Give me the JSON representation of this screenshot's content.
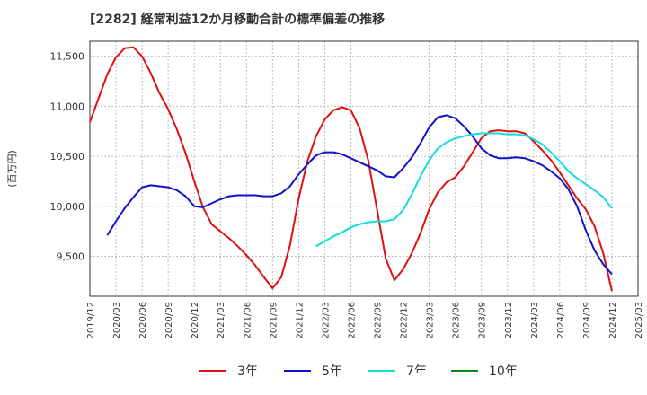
{
  "title": "[2282]  経常利益12か月移動合計の標準偏差の推移",
  "chart_data": {
    "type": "line",
    "title": "[2282]  経常利益12か月移動合計の標準偏差の推移",
    "ylabel": "(百万円)",
    "xlabel": "",
    "ylim": [
      9100,
      11650
    ],
    "yticks": [
      9500,
      10000,
      10500,
      11000,
      11500
    ],
    "ytick_labels": [
      "9,500",
      "10,000",
      "10,500",
      "11,000",
      "11,500"
    ],
    "xtick_labels": [
      "2019/12",
      "2020/03",
      "2020/06",
      "2020/09",
      "2020/12",
      "2021/03",
      "2021/06",
      "2021/09",
      "2021/12",
      "2022/03",
      "2022/06",
      "2022/09",
      "2022/12",
      "2023/03",
      "2023/06",
      "2023/09",
      "2023/12",
      "2024/03",
      "2024/06",
      "2024/09",
      "2024/12",
      "2025/03"
    ],
    "grid": true,
    "legend_position": "bottom",
    "series": [
      {
        "name": "3年",
        "color": "#dd1111",
        "values": [
          [
            "2019/12",
            10840
          ],
          [
            "2020/01",
            11080
          ],
          [
            "2020/02",
            11320
          ],
          [
            "2020/03",
            11490
          ],
          [
            "2020/04",
            11580
          ],
          [
            "2020/05",
            11590
          ],
          [
            "2020/06",
            11500
          ],
          [
            "2020/07",
            11330
          ],
          [
            "2020/08",
            11130
          ],
          [
            "2020/09",
            10970
          ],
          [
            "2020/10",
            10770
          ],
          [
            "2020/11",
            10530
          ],
          [
            "2020/12",
            10250
          ],
          [
            "2021/01",
            9990
          ],
          [
            "2021/02",
            9820
          ],
          [
            "2021/03",
            9750
          ],
          [
            "2021/04",
            9680
          ],
          [
            "2021/05",
            9600
          ],
          [
            "2021/06",
            9510
          ],
          [
            "2021/07",
            9410
          ],
          [
            "2021/08",
            9290
          ],
          [
            "2021/09",
            9180
          ],
          [
            "2021/10",
            9290
          ],
          [
            "2021/11",
            9610
          ],
          [
            "2021/12",
            10080
          ],
          [
            "2022/01",
            10450
          ],
          [
            "2022/02",
            10700
          ],
          [
            "2022/03",
            10870
          ],
          [
            "2022/04",
            10960
          ],
          [
            "2022/05",
            10990
          ],
          [
            "2022/06",
            10960
          ],
          [
            "2022/07",
            10780
          ],
          [
            "2022/08",
            10460
          ],
          [
            "2022/09",
            9970
          ],
          [
            "2022/10",
            9480
          ],
          [
            "2022/11",
            9260
          ],
          [
            "2022/12",
            9370
          ],
          [
            "2023/01",
            9530
          ],
          [
            "2023/02",
            9730
          ],
          [
            "2023/03",
            9970
          ],
          [
            "2023/04",
            10140
          ],
          [
            "2023/05",
            10240
          ],
          [
            "2023/06",
            10290
          ],
          [
            "2023/07",
            10400
          ],
          [
            "2023/08",
            10540
          ],
          [
            "2023/09",
            10680
          ],
          [
            "2023/10",
            10750
          ],
          [
            "2023/11",
            10760
          ],
          [
            "2023/12",
            10750
          ],
          [
            "2024/01",
            10750
          ],
          [
            "2024/02",
            10730
          ],
          [
            "2024/03",
            10650
          ],
          [
            "2024/04",
            10560
          ],
          [
            "2024/05",
            10460
          ],
          [
            "2024/06",
            10340
          ],
          [
            "2024/07",
            10210
          ],
          [
            "2024/08",
            10080
          ],
          [
            "2024/09",
            9970
          ],
          [
            "2024/10",
            9800
          ],
          [
            "2024/11",
            9530
          ],
          [
            "2024/12",
            9150
          ]
        ]
      },
      {
        "name": "5年",
        "color": "#1111cc",
        "values": [
          [
            "2020/02",
            9710
          ],
          [
            "2020/03",
            9850
          ],
          [
            "2020/04",
            9980
          ],
          [
            "2020/05",
            10090
          ],
          [
            "2020/06",
            10190
          ],
          [
            "2020/07",
            10210
          ],
          [
            "2020/08",
            10200
          ],
          [
            "2020/09",
            10190
          ],
          [
            "2020/10",
            10160
          ],
          [
            "2020/11",
            10100
          ],
          [
            "2020/12",
            10000
          ],
          [
            "2021/01",
            9990
          ],
          [
            "2021/02",
            10030
          ],
          [
            "2021/03",
            10070
          ],
          [
            "2021/04",
            10100
          ],
          [
            "2021/05",
            10110
          ],
          [
            "2021/06",
            10110
          ],
          [
            "2021/07",
            10110
          ],
          [
            "2021/08",
            10100
          ],
          [
            "2021/09",
            10100
          ],
          [
            "2021/10",
            10130
          ],
          [
            "2021/11",
            10200
          ],
          [
            "2021/12",
            10320
          ],
          [
            "2022/01",
            10420
          ],
          [
            "2022/02",
            10510
          ],
          [
            "2022/03",
            10540
          ],
          [
            "2022/04",
            10540
          ],
          [
            "2022/05",
            10520
          ],
          [
            "2022/06",
            10480
          ],
          [
            "2022/07",
            10440
          ],
          [
            "2022/08",
            10400
          ],
          [
            "2022/09",
            10360
          ],
          [
            "2022/10",
            10300
          ],
          [
            "2022/11",
            10290
          ],
          [
            "2022/12",
            10380
          ],
          [
            "2023/01",
            10490
          ],
          [
            "2023/02",
            10630
          ],
          [
            "2023/03",
            10790
          ],
          [
            "2023/04",
            10890
          ],
          [
            "2023/05",
            10910
          ],
          [
            "2023/06",
            10880
          ],
          [
            "2023/07",
            10800
          ],
          [
            "2023/08",
            10700
          ],
          [
            "2023/09",
            10580
          ],
          [
            "2023/10",
            10510
          ],
          [
            "2023/11",
            10480
          ],
          [
            "2023/12",
            10480
          ],
          [
            "2024/01",
            10490
          ],
          [
            "2024/02",
            10480
          ],
          [
            "2024/03",
            10450
          ],
          [
            "2024/04",
            10410
          ],
          [
            "2024/05",
            10350
          ],
          [
            "2024/06",
            10280
          ],
          [
            "2024/07",
            10170
          ],
          [
            "2024/08",
            10000
          ],
          [
            "2024/09",
            9760
          ],
          [
            "2024/10",
            9560
          ],
          [
            "2024/11",
            9420
          ],
          [
            "2024/12",
            9320
          ]
        ]
      },
      {
        "name": "7年",
        "color": "#11dddd",
        "values": [
          [
            "2022/02",
            9600
          ],
          [
            "2022/03",
            9650
          ],
          [
            "2022/04",
            9700
          ],
          [
            "2022/05",
            9740
          ],
          [
            "2022/06",
            9790
          ],
          [
            "2022/07",
            9820
          ],
          [
            "2022/08",
            9840
          ],
          [
            "2022/09",
            9850
          ],
          [
            "2022/10",
            9850
          ],
          [
            "2022/11",
            9870
          ],
          [
            "2022/12",
            9960
          ],
          [
            "2023/01",
            10120
          ],
          [
            "2023/02",
            10300
          ],
          [
            "2023/03",
            10460
          ],
          [
            "2023/04",
            10580
          ],
          [
            "2023/05",
            10640
          ],
          [
            "2023/06",
            10680
          ],
          [
            "2023/07",
            10700
          ],
          [
            "2023/08",
            10720
          ],
          [
            "2023/09",
            10730
          ],
          [
            "2023/10",
            10730
          ],
          [
            "2023/11",
            10730
          ],
          [
            "2023/12",
            10720
          ],
          [
            "2024/01",
            10720
          ],
          [
            "2024/02",
            10710
          ],
          [
            "2024/03",
            10670
          ],
          [
            "2024/04",
            10620
          ],
          [
            "2024/05",
            10540
          ],
          [
            "2024/06",
            10450
          ],
          [
            "2024/07",
            10350
          ],
          [
            "2024/08",
            10280
          ],
          [
            "2024/09",
            10220
          ],
          [
            "2024/10",
            10160
          ],
          [
            "2024/11",
            10090
          ],
          [
            "2024/12",
            9980
          ]
        ]
      },
      {
        "name": "10年",
        "color": "#118811",
        "values": []
      }
    ]
  }
}
